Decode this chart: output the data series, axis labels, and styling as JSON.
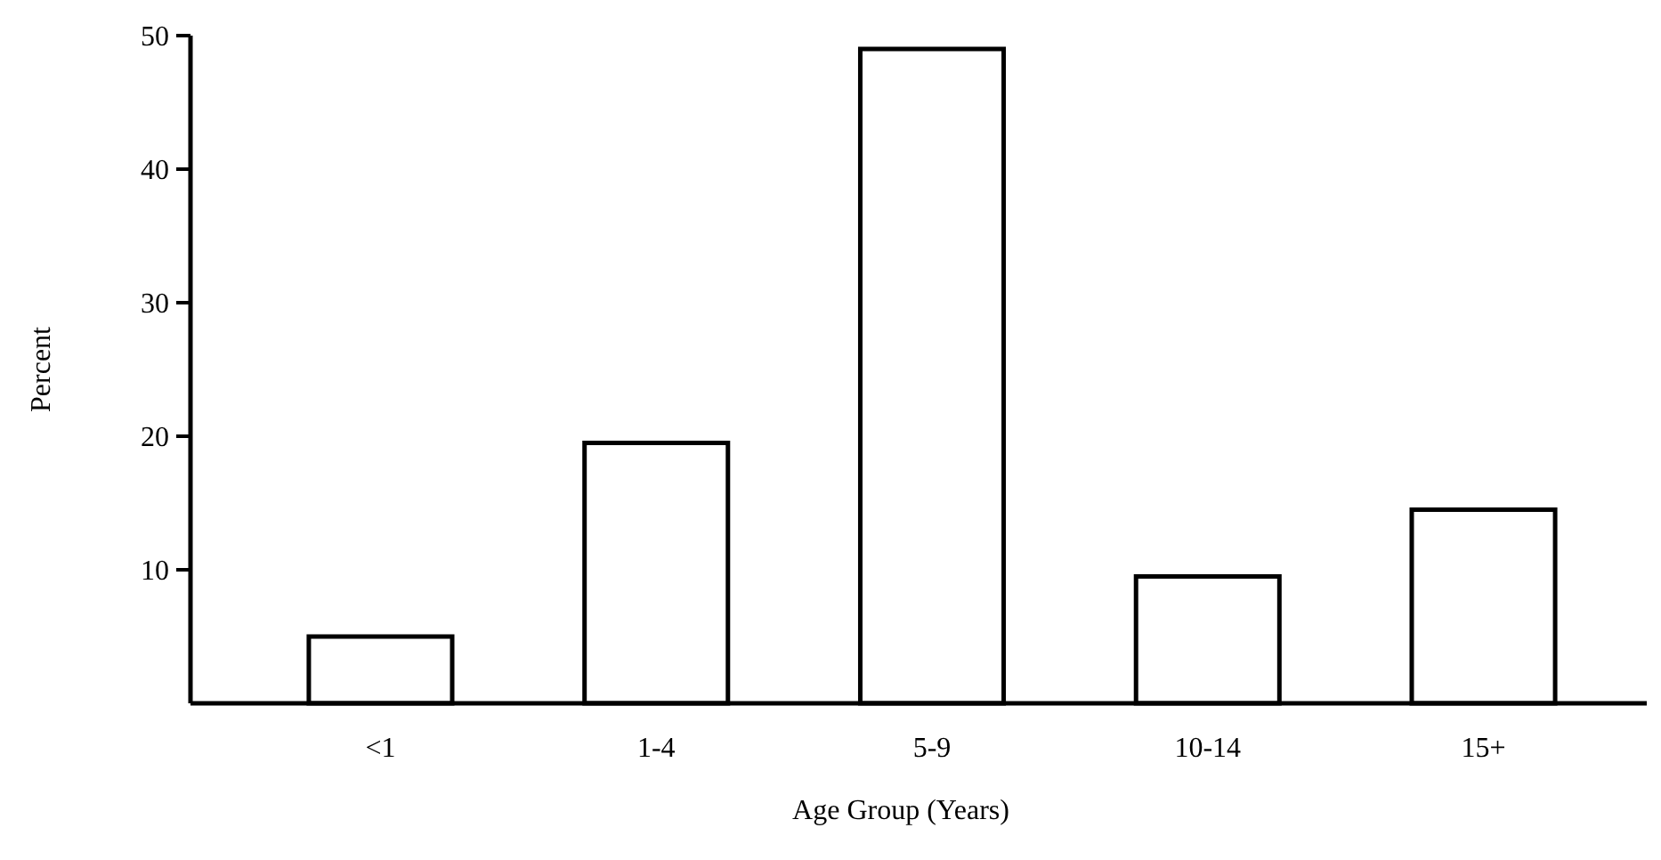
{
  "chart_data": {
    "type": "bar",
    "xlabel": "Age Group (Years)",
    "ylabel": "Percent",
    "categories": [
      "<1",
      "1-4",
      "5-9",
      "10-14",
      "15+"
    ],
    "values": [
      5,
      19.5,
      49,
      9.5,
      14.5
    ],
    "color": "#ffffff",
    "ylim": [
      0,
      50
    ],
    "yticks": [
      10,
      20,
      30,
      40,
      50
    ],
    "grid": false
  }
}
